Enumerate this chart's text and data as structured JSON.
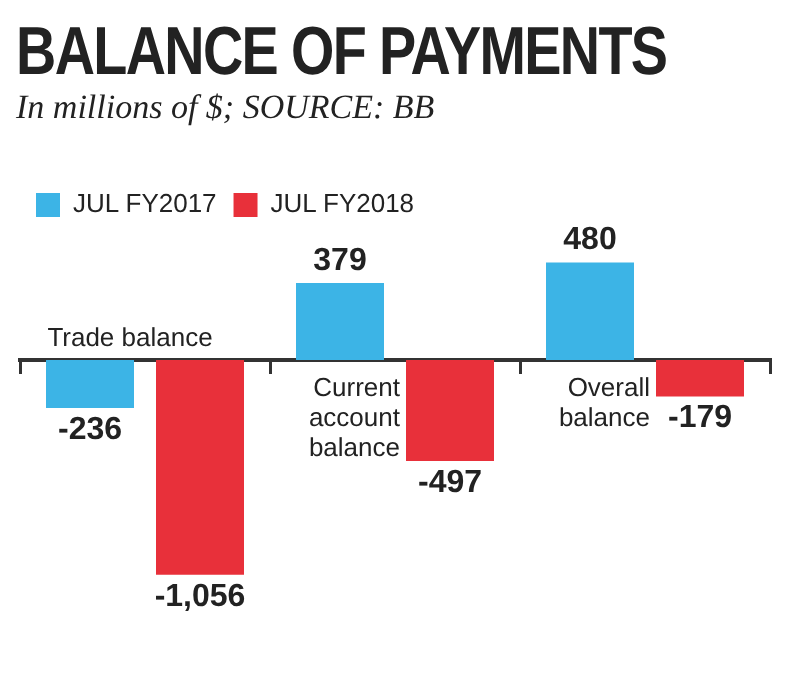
{
  "chart_data": {
    "type": "bar",
    "title": "BALANCE OF PAYMENTS",
    "subtitle": "In millions of $; SOURCE: BB",
    "categories": [
      "Trade balance",
      "Current account balance",
      "Overall balance"
    ],
    "series": [
      {
        "name": "JUL FY2017",
        "color": "#3cb4e6",
        "values": [
          -236,
          379,
          480
        ],
        "value_labels": [
          "-236",
          "379",
          "480"
        ]
      },
      {
        "name": "JUL FY2018",
        "color": "#e8303a",
        "values": [
          -1056,
          -497,
          -179
        ],
        "value_labels": [
          "-1,056",
          "-497",
          "-179"
        ]
      }
    ],
    "legend": "top left",
    "grid": false
  }
}
